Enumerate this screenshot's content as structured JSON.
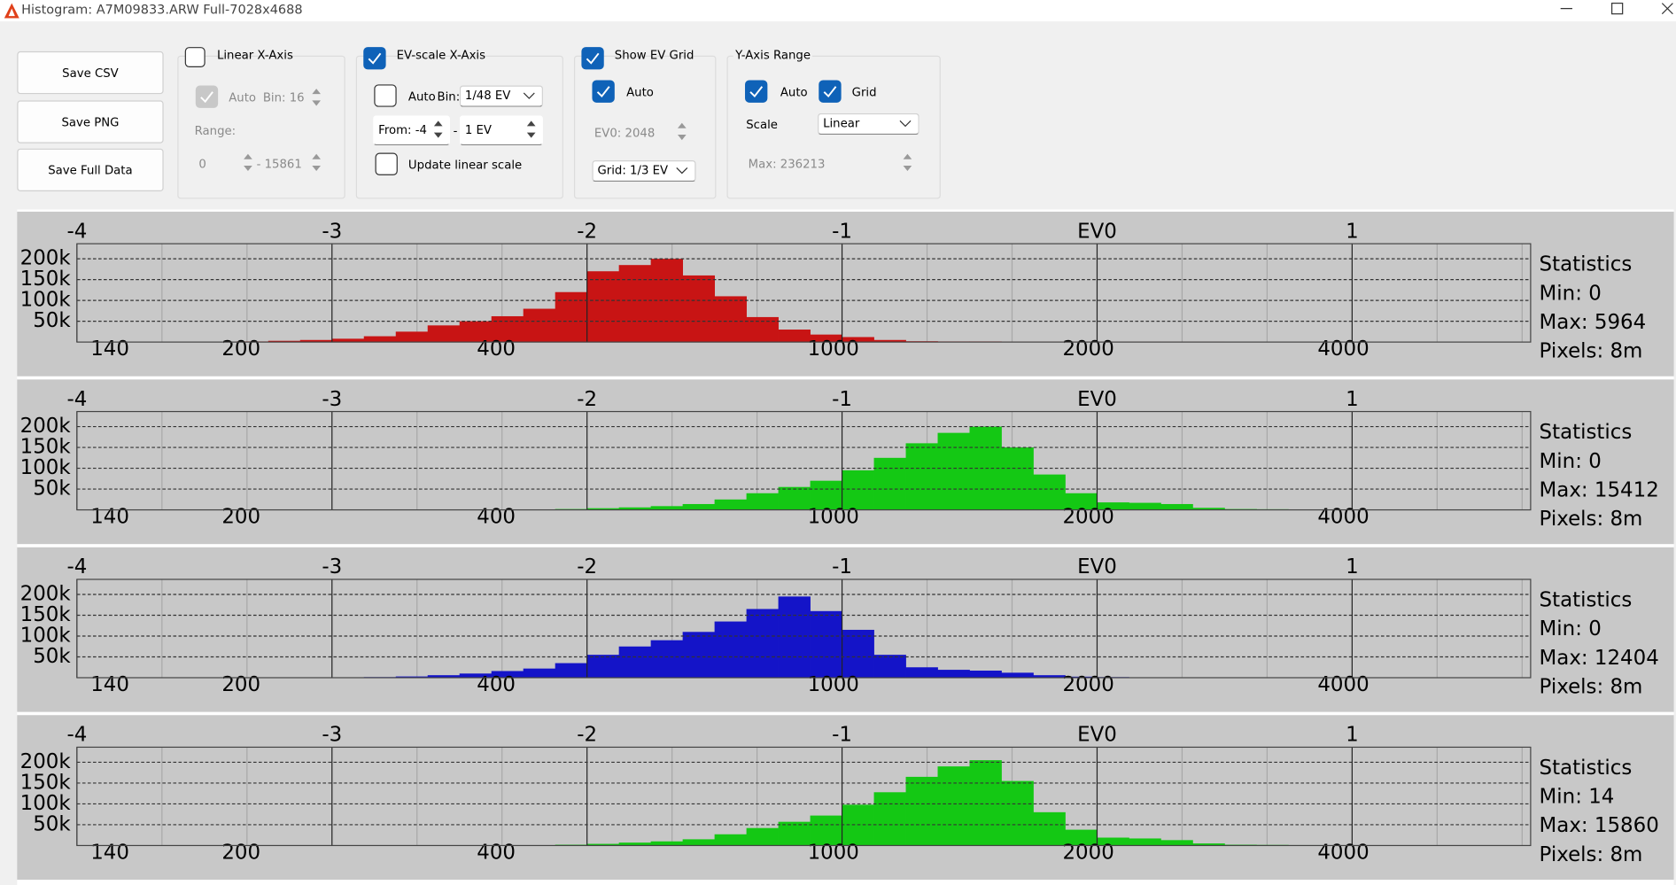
{
  "window": {
    "title": "Histogram: A7M09833.ARW Full-7028x4688"
  },
  "buttons": [
    "Save CSV",
    "Save PNG",
    "Save Full Data"
  ],
  "linear_x_axis": {
    "label": "Linear X-Axis",
    "checked": false,
    "auto": {
      "label": "Auto",
      "checked": true
    },
    "bin": "Bin: 16",
    "range_label": "Range:",
    "range_from": "0",
    "range_to": "- 15861"
  },
  "ev_scale_x_axis": {
    "label": "EV-scale X-Axis",
    "checked": true,
    "auto": {
      "label": "Auto",
      "checked": false
    },
    "bin_label": "Bin:",
    "bin": "1/48 EV",
    "from": "From: -4",
    "separator": "-",
    "to": "1 EV",
    "update_linear": {
      "label": "Update linear scale",
      "checked": false
    }
  },
  "ev_grid": {
    "label": "Show EV Grid",
    "checked": true,
    "auto": {
      "label": "Auto",
      "checked": true
    },
    "ev0_label": "EV0:",
    "ev0": 2048,
    "grid": "Grid: 1/3 EV"
  },
  "y_axis_range": {
    "label": "Y-Axis Range",
    "auto": {
      "label": "Auto",
      "checked": true
    },
    "grid": {
      "label": "Grid",
      "checked": true
    },
    "scale_label": "Scale",
    "scale": "Linear",
    "max_label": "Max:",
    "max": 236213
  },
  "chart_data": [
    {
      "type": "histogram",
      "color": "#c81414",
      "grid": true,
      "minor_grid_step": 0.333333,
      "bins": [
        -4,
        -3.875,
        -3.75,
        -3.625,
        -3.5,
        -3.375,
        -3.25,
        -3.125,
        -3,
        -2.875,
        -2.75,
        -2.625,
        -2.5,
        -2.375,
        -2.25,
        -2.125,
        -2,
        -1.875,
        -1.75,
        -1.625,
        -1.5,
        -1.375,
        -1.25,
        -1.125,
        -1,
        -0.875,
        -0.75,
        -0.625,
        -0.5,
        -0.375,
        -0.25,
        -0.125,
        0,
        0.125,
        0.25,
        0.375,
        0.5,
        0.625,
        0.75,
        0.875,
        1,
        1.125,
        1.25,
        1.375,
        1.5,
        1.625
      ],
      "values": [
        0,
        0,
        0,
        0,
        500,
        1500,
        3000,
        5000,
        8000,
        14000,
        25000,
        40000,
        50000,
        62000,
        80000,
        120000,
        170000,
        185000,
        200000,
        160000,
        110000,
        60000,
        30000,
        18000,
        12000,
        5000,
        2000,
        1500,
        1500,
        1200,
        1200,
        1200,
        1000,
        1000,
        1000,
        800,
        0,
        0,
        0,
        0,
        0,
        0,
        0,
        0,
        0
      ],
      "xlim": [
        -4,
        1.7
      ],
      "xticks": [
        -4,
        -3,
        -2,
        -1,
        {
          "value": 0,
          "label": "EV0"
        },
        1
      ],
      "x2ticks": [
        140,
        200,
        400,
        1000,
        2000,
        4000
      ],
      "ylim": [
        0,
        236213
      ],
      "yticks": [
        {
          "value": 50000,
          "label": "50k"
        },
        {
          "value": 100000,
          "label": "100k"
        },
        {
          "value": 150000,
          "label": "150k"
        },
        {
          "value": 200000,
          "label": "200k"
        }
      ],
      "statistics": {
        "title": "Statistics",
        "lines": [
          "Min: 0",
          "Max: 5964",
          "Pixels: 8m"
        ]
      }
    },
    {
      "type": "histogram",
      "color": "#14c814",
      "grid": true,
      "minor_grid_step": 0.333333,
      "bins": [
        -4,
        -3.875,
        -3.75,
        -3.625,
        -3.5,
        -3.375,
        -3.25,
        -3.125,
        -3,
        -2.875,
        -2.75,
        -2.625,
        -2.5,
        -2.375,
        -2.25,
        -2.125,
        -2,
        -1.875,
        -1.75,
        -1.625,
        -1.5,
        -1.375,
        -1.25,
        -1.125,
        -1,
        -0.875,
        -0.75,
        -0.625,
        -0.5,
        -0.375,
        -0.25,
        -0.125,
        0,
        0.125,
        0.25,
        0.375,
        0.5,
        0.625,
        0.75,
        0.875,
        1,
        1.125,
        1.25,
        1.375,
        1.5,
        1.625
      ],
      "values": [
        0,
        0,
        0,
        0,
        0,
        0,
        0,
        0,
        0,
        0,
        0,
        0,
        0,
        0,
        500,
        2000,
        4000,
        6000,
        9000,
        14000,
        25000,
        40000,
        55000,
        70000,
        95000,
        125000,
        160000,
        185000,
        200000,
        150000,
        85000,
        40000,
        18000,
        17000,
        14000,
        5000,
        2000,
        1500,
        1000,
        500,
        0,
        0,
        0,
        0,
        0
      ],
      "xlim": [
        -4,
        1.7
      ],
      "xticks": [
        -4,
        -3,
        -2,
        -1,
        {
          "value": 0,
          "label": "EV0"
        },
        1
      ],
      "x2ticks": [
        140,
        200,
        400,
        1000,
        2000,
        4000
      ],
      "ylim": [
        0,
        236213
      ],
      "yticks": [
        {
          "value": 50000,
          "label": "50k"
        },
        {
          "value": 100000,
          "label": "100k"
        },
        {
          "value": 150000,
          "label": "150k"
        },
        {
          "value": 200000,
          "label": "200k"
        }
      ],
      "statistics": {
        "title": "Statistics",
        "lines": [
          "Min: 0",
          "Max: 15412",
          "Pixels: 8m"
        ]
      }
    },
    {
      "type": "histogram",
      "color": "#1414c8",
      "grid": true,
      "minor_grid_step": 0.333333,
      "bins": [
        -4,
        -3.875,
        -3.75,
        -3.625,
        -3.5,
        -3.375,
        -3.25,
        -3.125,
        -3,
        -2.875,
        -2.75,
        -2.625,
        -2.5,
        -2.375,
        -2.25,
        -2.125,
        -2,
        -1.875,
        -1.75,
        -1.625,
        -1.5,
        -1.375,
        -1.25,
        -1.125,
        -1,
        -0.875,
        -0.75,
        -0.625,
        -0.5,
        -0.375,
        -0.25,
        -0.125,
        0,
        0.125,
        0.25,
        0.375,
        0.5,
        0.625,
        0.75,
        0.875,
        1,
        1.125,
        1.25,
        1.375,
        1.5,
        1.625
      ],
      "values": [
        0,
        0,
        0,
        0,
        0,
        0,
        0,
        0,
        500,
        1500,
        3000,
        6000,
        10000,
        16000,
        22000,
        35000,
        55000,
        75000,
        90000,
        110000,
        135000,
        165000,
        195000,
        160000,
        115000,
        55000,
        25000,
        19000,
        17000,
        12000,
        6000,
        2500,
        1500,
        1000,
        1000,
        800,
        800,
        800,
        500,
        500,
        0,
        0,
        0,
        0,
        0
      ],
      "xlim": [
        -4,
        1.7
      ],
      "xticks": [
        -4,
        -3,
        -2,
        -1,
        {
          "value": 0,
          "label": "EV0"
        },
        1
      ],
      "x2ticks": [
        140,
        200,
        400,
        1000,
        2000,
        4000
      ],
      "ylim": [
        0,
        236213
      ],
      "yticks": [
        {
          "value": 50000,
          "label": "50k"
        },
        {
          "value": 100000,
          "label": "100k"
        },
        {
          "value": 150000,
          "label": "150k"
        },
        {
          "value": 200000,
          "label": "200k"
        }
      ],
      "statistics": {
        "title": "Statistics",
        "lines": [
          "Min: 0",
          "Max: 12404",
          "Pixels: 8m"
        ]
      }
    },
    {
      "type": "histogram",
      "color": "#14c814",
      "grid": true,
      "minor_grid_step": 0.333333,
      "bins": [
        -4,
        -3.875,
        -3.75,
        -3.625,
        -3.5,
        -3.375,
        -3.25,
        -3.125,
        -3,
        -2.875,
        -2.75,
        -2.625,
        -2.5,
        -2.375,
        -2.25,
        -2.125,
        -2,
        -1.875,
        -1.75,
        -1.625,
        -1.5,
        -1.375,
        -1.25,
        -1.125,
        -1,
        -0.875,
        -0.75,
        -0.625,
        -0.5,
        -0.375,
        -0.25,
        -0.125,
        0,
        0.125,
        0.25,
        0.375,
        0.5,
        0.625,
        0.75,
        0.875,
        1,
        1.125,
        1.25,
        1.375,
        1.5,
        1.625
      ],
      "values": [
        0,
        0,
        0,
        0,
        0,
        0,
        0,
        0,
        0,
        0,
        0,
        0,
        0,
        0,
        500,
        2000,
        4000,
        7000,
        10000,
        15000,
        27000,
        42000,
        57000,
        72000,
        98000,
        128000,
        165000,
        190000,
        205000,
        155000,
        80000,
        38000,
        19000,
        17000,
        13000,
        5000,
        2000,
        1500,
        1000,
        500,
        0,
        0,
        0,
        0,
        0
      ],
      "xlim": [
        -4,
        1.7
      ],
      "xticks": [
        -4,
        -3,
        -2,
        -1,
        {
          "value": 0,
          "label": "EV0"
        },
        1
      ],
      "x2ticks": [
        140,
        200,
        400,
        1000,
        2000,
        4000
      ],
      "ylim": [
        0,
        236213
      ],
      "yticks": [
        {
          "value": 50000,
          "label": "50k"
        },
        {
          "value": 100000,
          "label": "100k"
        },
        {
          "value": 150000,
          "label": "150k"
        },
        {
          "value": 200000,
          "label": "200k"
        }
      ],
      "statistics": {
        "title": "Statistics",
        "lines": [
          "Min: 14",
          "Max: 15860",
          "Pixels: 8m"
        ]
      }
    }
  ]
}
